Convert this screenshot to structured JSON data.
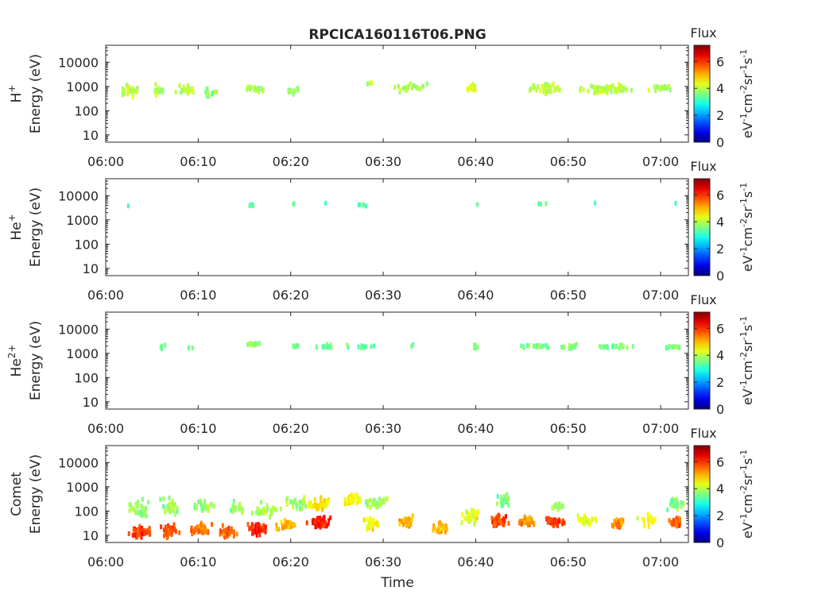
{
  "title": "RPCICA160116T06.PNG",
  "xlabel": "Time",
  "colorbar": {
    "label": "Flux",
    "unit_parts": [
      "eV",
      "-1",
      "cm",
      "-2",
      "sr",
      "-1",
      "s",
      "-1"
    ],
    "ticks": [
      0,
      2,
      4,
      6
    ],
    "range": [
      0,
      7.2
    ]
  },
  "x_ticks": [
    "06:00",
    "06:10",
    "06:20",
    "06:30",
    "06:40",
    "06:50",
    "07:00"
  ],
  "y_ticks": [
    "10",
    "100",
    "1000",
    "10000"
  ],
  "y_unit_line": "Energy (eV)",
  "chart_data": [
    {
      "type": "heatmap",
      "species_base": "H",
      "species_sup": "+",
      "ylabel": "Energy (eV)",
      "xlim_minutes": [
        0,
        63
      ],
      "ylim": [
        5,
        50000
      ],
      "yscale": "log",
      "blobs": [
        {
          "t": 2.5,
          "dt": 1.2,
          "e": 700,
          "spread": 2.0,
          "flux": 4.0,
          "n": 30
        },
        {
          "t": 5.5,
          "dt": 1.0,
          "e": 700,
          "spread": 2.0,
          "flux": 4.0,
          "n": 15
        },
        {
          "t": 8.5,
          "dt": 1.5,
          "e": 750,
          "spread": 1.8,
          "flux": 4.0,
          "n": 20
        },
        {
          "t": 11.0,
          "dt": 1.0,
          "e": 550,
          "spread": 1.8,
          "flux": 3.8,
          "n": 15
        },
        {
          "t": 16.0,
          "dt": 1.5,
          "e": 800,
          "spread": 1.6,
          "flux": 4.0,
          "n": 22
        },
        {
          "t": 20.0,
          "dt": 1.5,
          "e": 650,
          "spread": 1.6,
          "flux": 3.8,
          "n": 12
        },
        {
          "t": 28.5,
          "dt": 0.6,
          "e": 1300,
          "spread": 1.3,
          "flux": 3.8,
          "n": 3
        },
        {
          "t": 32.5,
          "dt": 2.5,
          "e": 800,
          "spread": 1.8,
          "flux": 4.0,
          "n": 25
        },
        {
          "t": 39.5,
          "dt": 0.8,
          "e": 850,
          "spread": 1.6,
          "flux": 4.3,
          "n": 22
        },
        {
          "t": 47.5,
          "dt": 2.5,
          "e": 800,
          "spread": 1.8,
          "flux": 4.0,
          "n": 48
        },
        {
          "t": 54.0,
          "dt": 3.5,
          "e": 780,
          "spread": 1.8,
          "flux": 4.0,
          "n": 65
        },
        {
          "t": 60.0,
          "dt": 1.8,
          "e": 850,
          "spread": 1.5,
          "flux": 3.9,
          "n": 20
        }
      ]
    },
    {
      "type": "heatmap",
      "species_base": "He",
      "species_sup": "+",
      "ylabel": "Energy (eV)",
      "xlim_minutes": [
        0,
        63
      ],
      "ylim": [
        5,
        50000
      ],
      "yscale": "log",
      "blobs": [
        {
          "t": 2.3,
          "dt": 0.1,
          "e": 3800,
          "spread": 1.1,
          "flux": 3.3,
          "n": 1
        },
        {
          "t": 15.5,
          "dt": 0.6,
          "e": 4200,
          "spread": 1.2,
          "flux": 3.3,
          "n": 5
        },
        {
          "t": 20.2,
          "dt": 0.2,
          "e": 4500,
          "spread": 1.2,
          "flux": 3.3,
          "n": 2
        },
        {
          "t": 23.5,
          "dt": 0.2,
          "e": 5000,
          "spread": 1.1,
          "flux": 3.3,
          "n": 1
        },
        {
          "t": 27.5,
          "dt": 1.2,
          "e": 4000,
          "spread": 1.2,
          "flux": 3.3,
          "n": 6
        },
        {
          "t": 40.0,
          "dt": 0.2,
          "e": 4500,
          "spread": 1.1,
          "flux": 3.3,
          "n": 1
        },
        {
          "t": 47.0,
          "dt": 1.0,
          "e": 4200,
          "spread": 1.2,
          "flux": 3.3,
          "n": 3
        },
        {
          "t": 52.7,
          "dt": 0.1,
          "e": 4800,
          "spread": 1.1,
          "flux": 3.3,
          "n": 1
        },
        {
          "t": 61.5,
          "dt": 0.1,
          "e": 4800,
          "spread": 1.1,
          "flux": 3.3,
          "n": 1
        }
      ]
    },
    {
      "type": "heatmap",
      "species_base": "He",
      "species_sup": "2+",
      "ylabel": "Energy (eV)",
      "xlim_minutes": [
        0,
        63
      ],
      "ylim": [
        5,
        50000
      ],
      "yscale": "log",
      "blobs": [
        {
          "t": 6.0,
          "dt": 0.8,
          "e": 1900,
          "spread": 1.4,
          "flux": 3.6,
          "n": 6
        },
        {
          "t": 9.0,
          "dt": 0.8,
          "e": 1800,
          "spread": 1.3,
          "flux": 3.4,
          "n": 3
        },
        {
          "t": 15.8,
          "dt": 1.0,
          "e": 2300,
          "spread": 1.2,
          "flux": 3.8,
          "n": 18
        },
        {
          "t": 20.5,
          "dt": 0.6,
          "e": 1800,
          "spread": 1.3,
          "flux": 3.4,
          "n": 5
        },
        {
          "t": 23.5,
          "dt": 1.5,
          "e": 1900,
          "spread": 1.3,
          "flux": 3.5,
          "n": 15
        },
        {
          "t": 27.5,
          "dt": 2.0,
          "e": 1900,
          "spread": 1.3,
          "flux": 3.4,
          "n": 12
        },
        {
          "t": 33.0,
          "dt": 0.3,
          "e": 2100,
          "spread": 1.2,
          "flux": 3.4,
          "n": 2
        },
        {
          "t": 39.8,
          "dt": 0.5,
          "e": 1900,
          "spread": 1.3,
          "flux": 3.6,
          "n": 8
        },
        {
          "t": 46.0,
          "dt": 2.5,
          "e": 1900,
          "spread": 1.3,
          "flux": 3.5,
          "n": 20
        },
        {
          "t": 50.0,
          "dt": 1.5,
          "e": 1900,
          "spread": 1.3,
          "flux": 3.6,
          "n": 14
        },
        {
          "t": 55.0,
          "dt": 2.5,
          "e": 1950,
          "spread": 1.3,
          "flux": 3.6,
          "n": 22
        },
        {
          "t": 61.0,
          "dt": 1.5,
          "e": 1850,
          "spread": 1.3,
          "flux": 3.5,
          "n": 12
        }
      ]
    },
    {
      "type": "heatmap",
      "species_base": "Comet",
      "species_sup": "",
      "ylabel": "Energy (eV)",
      "xlim_minutes": [
        0,
        63
      ],
      "ylim": [
        5,
        50000
      ],
      "yscale": "log",
      "blobs": [
        {
          "t": 3.5,
          "dt": 1.5,
          "e": 14,
          "spread": 2.0,
          "flux": 5.9,
          "n": 45
        },
        {
          "t": 3.5,
          "dt": 1.5,
          "e": 120,
          "spread": 3.0,
          "flux": 3.8,
          "n": 30
        },
        {
          "t": 6.8,
          "dt": 1.2,
          "e": 15,
          "spread": 2.0,
          "flux": 5.7,
          "n": 40
        },
        {
          "t": 6.8,
          "dt": 1.2,
          "e": 150,
          "spread": 3.0,
          "flux": 3.8,
          "n": 28
        },
        {
          "t": 10.0,
          "dt": 1.5,
          "e": 18,
          "spread": 2.0,
          "flux": 5.5,
          "n": 40
        },
        {
          "t": 10.5,
          "dt": 1.5,
          "e": 150,
          "spread": 2.5,
          "flux": 3.8,
          "n": 25
        },
        {
          "t": 13.0,
          "dt": 1.5,
          "e": 14,
          "spread": 2.0,
          "flux": 5.6,
          "n": 35
        },
        {
          "t": 14.0,
          "dt": 1.5,
          "e": 130,
          "spread": 2.5,
          "flux": 3.8,
          "n": 20
        },
        {
          "t": 16.2,
          "dt": 1.3,
          "e": 18,
          "spread": 2.0,
          "flux": 6.1,
          "n": 55
        },
        {
          "t": 17.0,
          "dt": 2.0,
          "e": 120,
          "spread": 2.5,
          "flux": 3.9,
          "n": 30
        },
        {
          "t": 19.5,
          "dt": 1.5,
          "e": 25,
          "spread": 2.0,
          "flux": 5.0,
          "n": 30
        },
        {
          "t": 20.5,
          "dt": 1.5,
          "e": 200,
          "spread": 2.5,
          "flux": 3.8,
          "n": 25
        },
        {
          "t": 23.0,
          "dt": 1.5,
          "e": 35,
          "spread": 2.0,
          "flux": 6.2,
          "n": 60
        },
        {
          "t": 23.0,
          "dt": 1.5,
          "e": 200,
          "spread": 2.2,
          "flux": 4.6,
          "n": 40
        },
        {
          "t": 26.5,
          "dt": 1.2,
          "e": 300,
          "spread": 2.0,
          "flux": 4.5,
          "n": 40
        },
        {
          "t": 28.5,
          "dt": 1.5,
          "e": 30,
          "spread": 2.0,
          "flux": 4.5,
          "n": 25
        },
        {
          "t": 29.0,
          "dt": 1.5,
          "e": 200,
          "spread": 2.0,
          "flux": 3.8,
          "n": 30
        },
        {
          "t": 32.5,
          "dt": 1.0,
          "e": 35,
          "spread": 2.0,
          "flux": 5.0,
          "n": 30
        },
        {
          "t": 36.0,
          "dt": 1.0,
          "e": 20,
          "spread": 2.2,
          "flux": 5.0,
          "n": 25
        },
        {
          "t": 39.5,
          "dt": 1.5,
          "e": 60,
          "spread": 2.5,
          "flux": 4.3,
          "n": 35
        },
        {
          "t": 42.5,
          "dt": 1.3,
          "e": 40,
          "spread": 2.0,
          "flux": 5.8,
          "n": 45
        },
        {
          "t": 42.8,
          "dt": 1.0,
          "e": 300,
          "spread": 2.5,
          "flux": 3.6,
          "n": 20
        },
        {
          "t": 45.5,
          "dt": 1.3,
          "e": 35,
          "spread": 1.8,
          "flux": 5.3,
          "n": 35
        },
        {
          "t": 48.5,
          "dt": 1.3,
          "e": 35,
          "spread": 1.8,
          "flux": 5.8,
          "n": 35
        },
        {
          "t": 48.5,
          "dt": 1.0,
          "e": 150,
          "spread": 2.0,
          "flux": 3.8,
          "n": 15
        },
        {
          "t": 52.0,
          "dt": 1.5,
          "e": 40,
          "spread": 2.0,
          "flux": 4.3,
          "n": 25
        },
        {
          "t": 55.3,
          "dt": 0.8,
          "e": 30,
          "spread": 2.0,
          "flux": 5.3,
          "n": 30
        },
        {
          "t": 58.5,
          "dt": 1.5,
          "e": 40,
          "spread": 2.0,
          "flux": 4.5,
          "n": 20
        },
        {
          "t": 61.5,
          "dt": 1.0,
          "e": 35,
          "spread": 1.8,
          "flux": 5.6,
          "n": 35
        },
        {
          "t": 61.5,
          "dt": 1.5,
          "e": 200,
          "spread": 2.5,
          "flux": 3.7,
          "n": 25
        }
      ]
    }
  ]
}
